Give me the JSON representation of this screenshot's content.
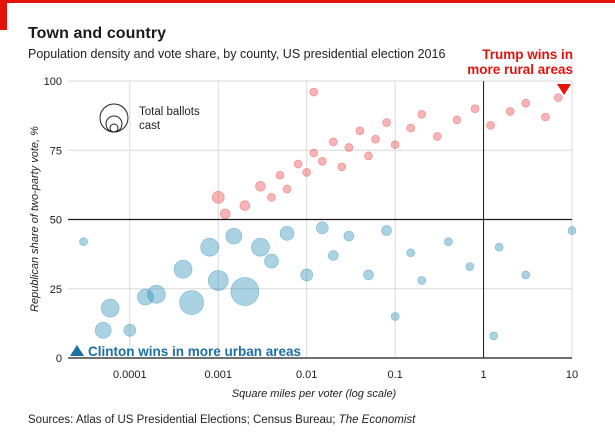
{
  "header": {
    "title": "Town and country",
    "subtitle": "Population density and vote share, by county, US presidential election 2016"
  },
  "footer": {
    "source_prefix": "Sources: Atlas of US Presidential Elections; Census Bureau; ",
    "source_italic": "The Economist"
  },
  "colors": {
    "accent": "#e3120b",
    "trump": "#e8393d",
    "clinton": "#1f8ab3",
    "grid": "#d9d9d9",
    "axis": "#1a1a1a"
  },
  "chart_data": {
    "type": "scatter",
    "title": "Town and country",
    "subtitle": "Population density and vote share, by county, US presidential election 2016",
    "xlabel": "Square miles per voter (log scale)",
    "ylabel": "Republican share of two-party vote, %",
    "x_scale": "log",
    "xlim": [
      2e-05,
      10
    ],
    "ylim": [
      0,
      100
    ],
    "x_ticks": [
      0.0001,
      0.001,
      0.01,
      0.1,
      1,
      10
    ],
    "x_tick_labels": [
      "0.0001",
      "0.001",
      "0.01",
      "0.1",
      "1",
      "10"
    ],
    "y_ticks": [
      0,
      25,
      50,
      75,
      100
    ],
    "y_tick_labels": [
      "0",
      "25",
      "50",
      "75",
      "100"
    ],
    "reference_lines": {
      "x": 1,
      "y": 50
    },
    "grid": true,
    "legend": {
      "label_line1": "Total ballots",
      "label_line2": "cast",
      "placement": "top-left"
    },
    "annotations": {
      "trump_line1": "Trump wins in",
      "trump_line2": "more rural areas",
      "clinton": "Clinton wins in more urban areas"
    },
    "series": [
      {
        "name": "Trump",
        "color": "#e8393d",
        "size_encodes": "total ballots cast",
        "points": [
          {
            "x": 0.001,
            "y": 58,
            "s": 6
          },
          {
            "x": 0.0012,
            "y": 52,
            "s": 5
          },
          {
            "x": 0.002,
            "y": 55,
            "s": 5
          },
          {
            "x": 0.003,
            "y": 62,
            "s": 5
          },
          {
            "x": 0.004,
            "y": 58,
            "s": 4
          },
          {
            "x": 0.005,
            "y": 66,
            "s": 4
          },
          {
            "x": 0.006,
            "y": 61,
            "s": 4
          },
          {
            "x": 0.008,
            "y": 70,
            "s": 4
          },
          {
            "x": 0.01,
            "y": 67,
            "s": 4
          },
          {
            "x": 0.012,
            "y": 74,
            "s": 4
          },
          {
            "x": 0.015,
            "y": 71,
            "s": 4
          },
          {
            "x": 0.02,
            "y": 78,
            "s": 4
          },
          {
            "x": 0.025,
            "y": 69,
            "s": 4
          },
          {
            "x": 0.03,
            "y": 76,
            "s": 4
          },
          {
            "x": 0.04,
            "y": 82,
            "s": 4
          },
          {
            "x": 0.05,
            "y": 73,
            "s": 4
          },
          {
            "x": 0.06,
            "y": 79,
            "s": 4
          },
          {
            "x": 0.08,
            "y": 85,
            "s": 4
          },
          {
            "x": 0.1,
            "y": 77,
            "s": 4
          },
          {
            "x": 0.15,
            "y": 83,
            "s": 4
          },
          {
            "x": 0.2,
            "y": 88,
            "s": 4
          },
          {
            "x": 0.3,
            "y": 80,
            "s": 4
          },
          {
            "x": 0.5,
            "y": 86,
            "s": 4
          },
          {
            "x": 0.8,
            "y": 90,
            "s": 4
          },
          {
            "x": 1.2,
            "y": 84,
            "s": 4
          },
          {
            "x": 2,
            "y": 89,
            "s": 4
          },
          {
            "x": 3,
            "y": 92,
            "s": 4
          },
          {
            "x": 5,
            "y": 87,
            "s": 4
          },
          {
            "x": 7,
            "y": 94,
            "s": 4
          },
          {
            "x": 0.012,
            "y": 96,
            "s": 4
          }
        ]
      },
      {
        "name": "Clinton",
        "color": "#1f8ab3",
        "size_encodes": "total ballots cast",
        "points": [
          {
            "x": 3e-05,
            "y": 42,
            "s": 4
          },
          {
            "x": 5e-05,
            "y": 10,
            "s": 8
          },
          {
            "x": 6e-05,
            "y": 18,
            "s": 9
          },
          {
            "x": 0.0001,
            "y": 10,
            "s": 6
          },
          {
            "x": 0.00015,
            "y": 22,
            "s": 8
          },
          {
            "x": 0.0002,
            "y": 23,
            "s": 9
          },
          {
            "x": 0.0004,
            "y": 32,
            "s": 9
          },
          {
            "x": 0.0005,
            "y": 20,
            "s": 12
          },
          {
            "x": 0.0008,
            "y": 40,
            "s": 9
          },
          {
            "x": 0.001,
            "y": 28,
            "s": 10
          },
          {
            "x": 0.0015,
            "y": 44,
            "s": 8
          },
          {
            "x": 0.002,
            "y": 24,
            "s": 14
          },
          {
            "x": 0.003,
            "y": 40,
            "s": 9
          },
          {
            "x": 0.004,
            "y": 35,
            "s": 7
          },
          {
            "x": 0.006,
            "y": 45,
            "s": 7
          },
          {
            "x": 0.01,
            "y": 30,
            "s": 6
          },
          {
            "x": 0.015,
            "y": 47,
            "s": 6
          },
          {
            "x": 0.02,
            "y": 37,
            "s": 5
          },
          {
            "x": 0.03,
            "y": 44,
            "s": 5
          },
          {
            "x": 0.05,
            "y": 30,
            "s": 5
          },
          {
            "x": 0.08,
            "y": 46,
            "s": 5
          },
          {
            "x": 0.1,
            "y": 15,
            "s": 4
          },
          {
            "x": 0.15,
            "y": 38,
            "s": 4
          },
          {
            "x": 0.2,
            "y": 28,
            "s": 4
          },
          {
            "x": 0.4,
            "y": 42,
            "s": 4
          },
          {
            "x": 0.7,
            "y": 33,
            "s": 4
          },
          {
            "x": 1.5,
            "y": 40,
            "s": 4
          },
          {
            "x": 3,
            "y": 30,
            "s": 4
          },
          {
            "x": 10,
            "y": 46,
            "s": 4
          },
          {
            "x": 1.3,
            "y": 8,
            "s": 4
          }
        ]
      }
    ]
  }
}
